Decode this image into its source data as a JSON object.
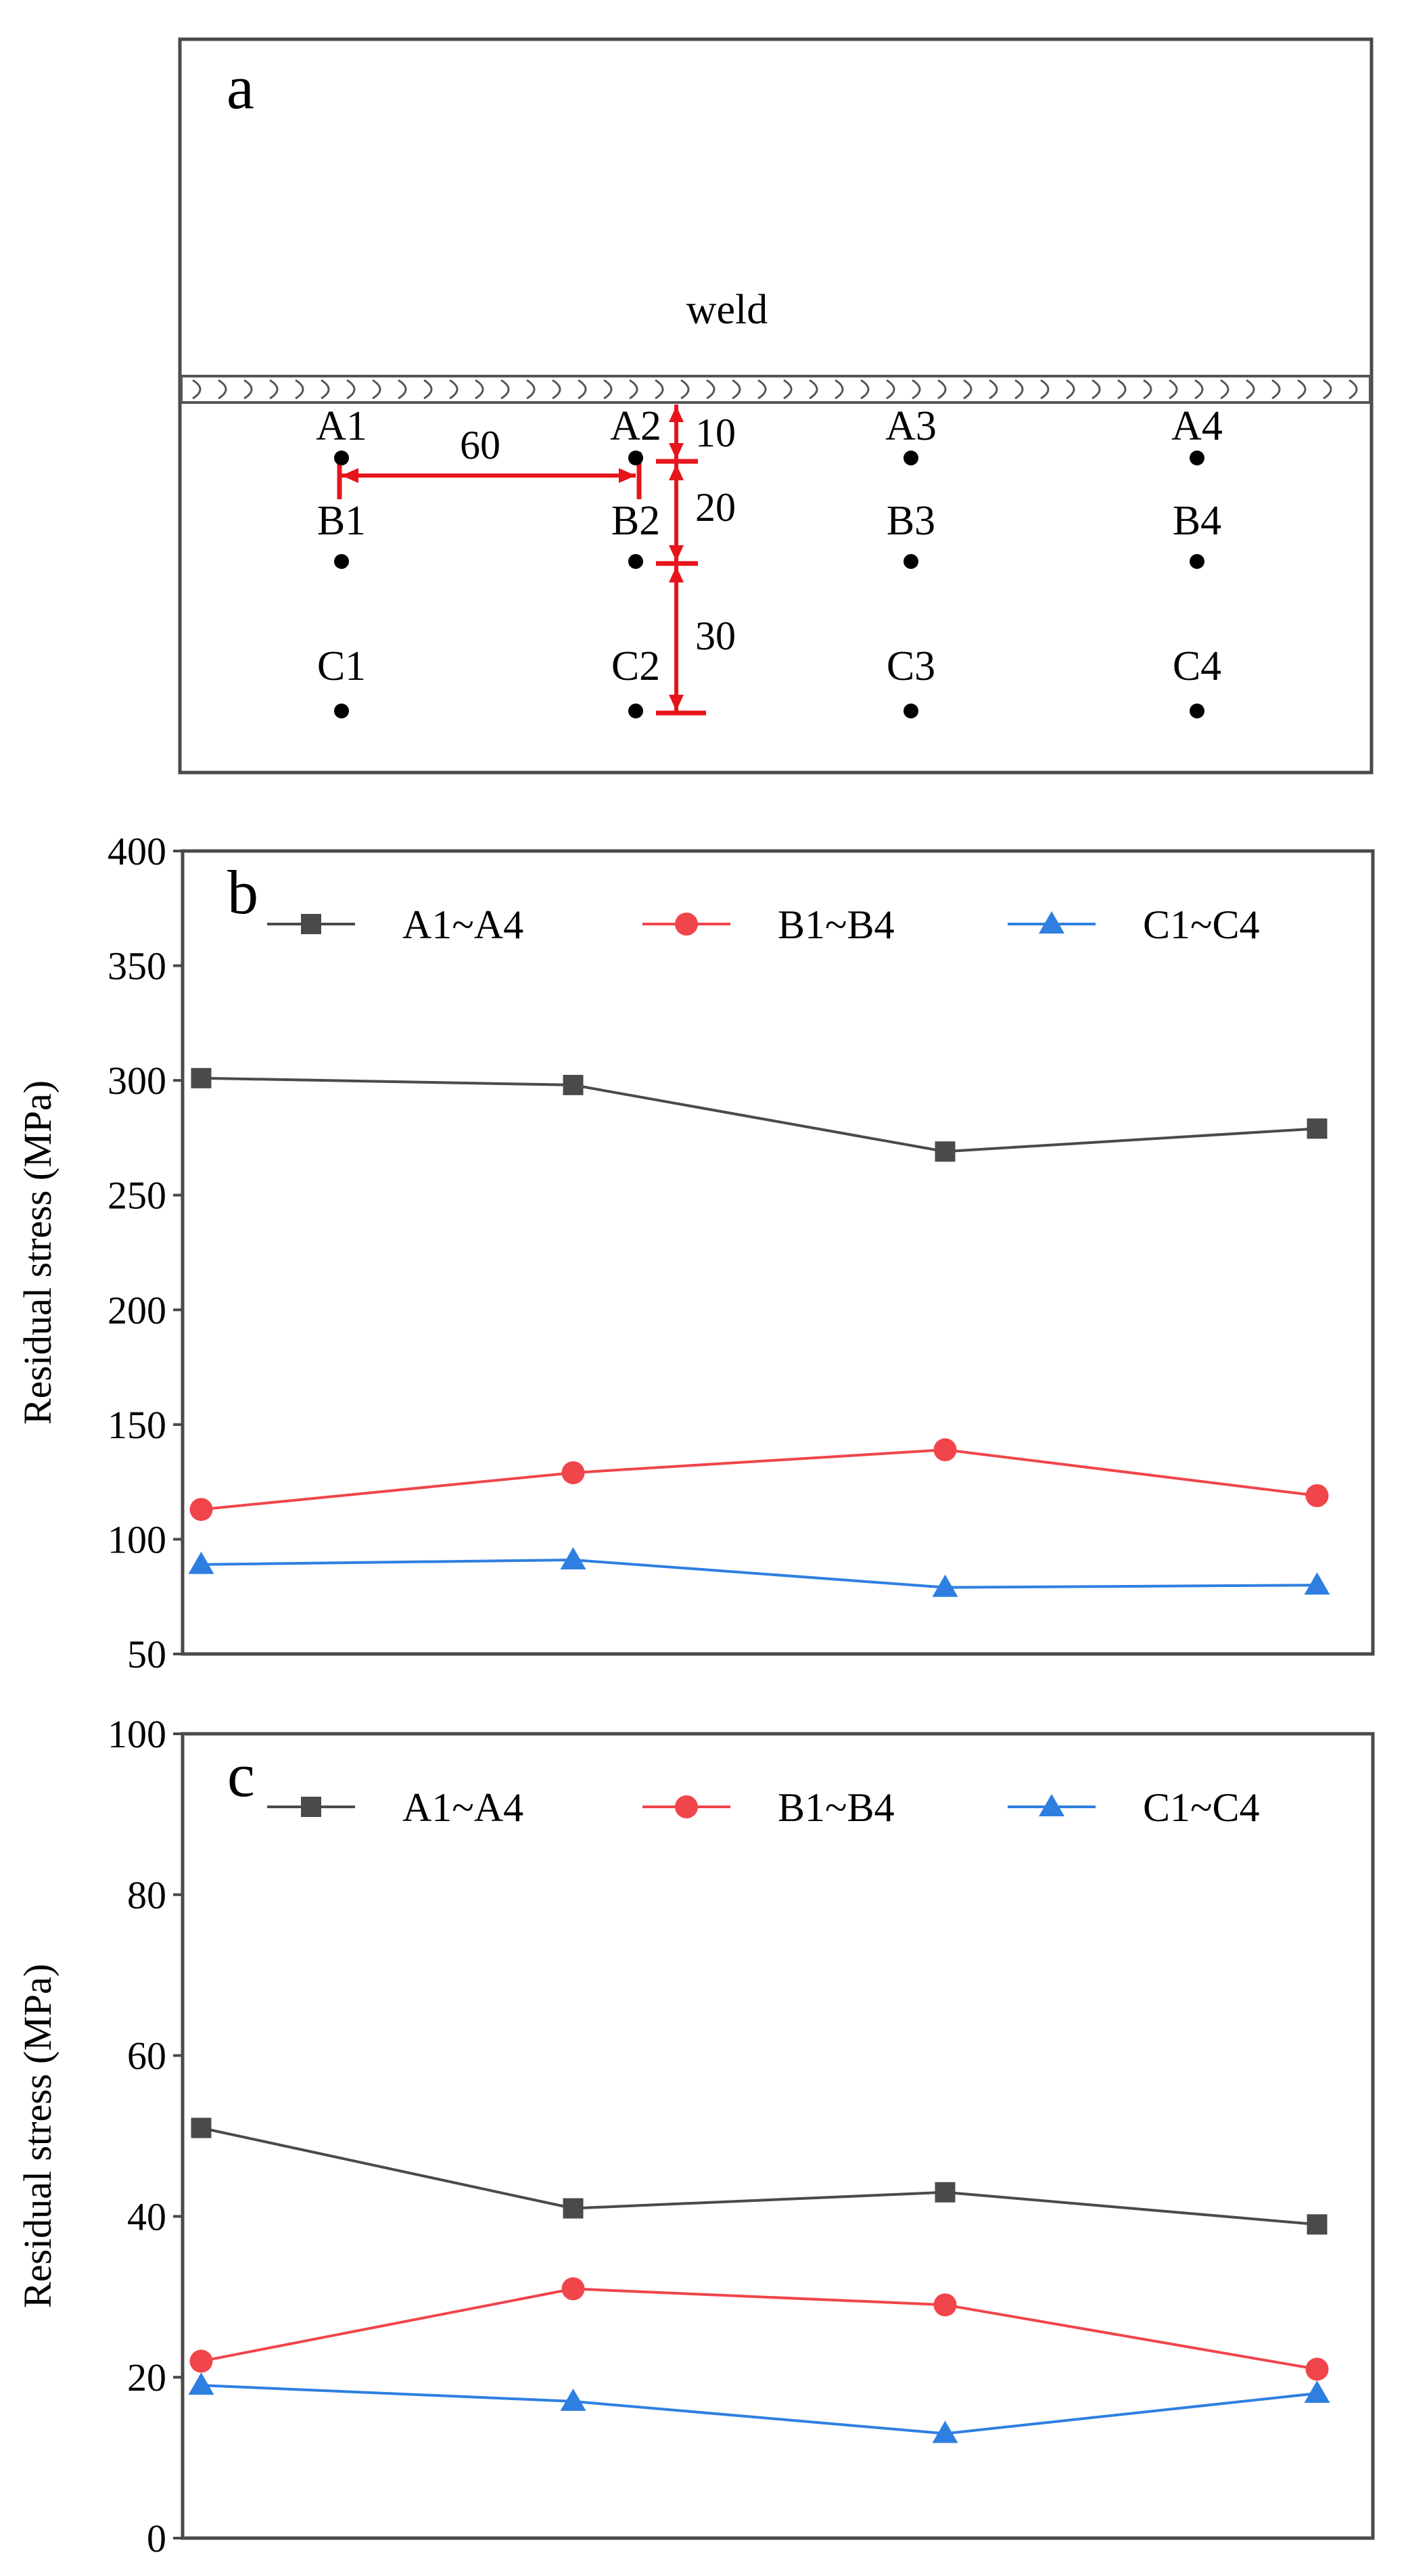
{
  "panel_a": {
    "label": "a",
    "weld_label": "weld",
    "points": {
      "row_a": [
        "A1",
        "A2",
        "A3",
        "A4"
      ],
      "row_b": [
        "B1",
        "B2",
        "B3",
        "B4"
      ],
      "row_c": [
        "C1",
        "C2",
        "C3",
        "C4"
      ]
    },
    "dimensions": {
      "horizontal": "60",
      "d1": "10",
      "d2": "20",
      "d3": "30"
    },
    "colors": {
      "dimension": "#e8141c",
      "point": "#000000",
      "weld_stroke": "#555555"
    }
  },
  "chart_data": [
    {
      "type": "line",
      "panel_label": "b",
      "title": "",
      "xlabel": "",
      "ylabel": "Residual stress (MPa)",
      "x": [
        1,
        2,
        3,
        4
      ],
      "xlim": [
        0.95,
        4.15
      ],
      "ylim": [
        50,
        400
      ],
      "yticks": [
        50,
        100,
        150,
        200,
        250,
        300,
        350,
        400
      ],
      "grid": false,
      "legend": "top, horizontal",
      "series": [
        {
          "name": "A1~A4",
          "marker": "square",
          "color": "#4a4a4a",
          "values": [
            301,
            298,
            269,
            279
          ]
        },
        {
          "name": "B1~B4",
          "marker": "circle",
          "color": "#f0454b",
          "values": [
            113,
            129,
            139,
            119
          ]
        },
        {
          "name": "C1~C4",
          "marker": "triangle",
          "color": "#2f7fe0",
          "values": [
            89,
            91,
            79,
            80
          ]
        }
      ]
    },
    {
      "type": "line",
      "panel_label": "c",
      "title": "",
      "xlabel": "",
      "ylabel": "Residual stress (MPa)",
      "x": [
        1,
        2,
        3,
        4
      ],
      "xlim": [
        0.95,
        4.15
      ],
      "ylim": [
        0,
        100
      ],
      "yticks": [
        0,
        20,
        40,
        60,
        80,
        100
      ],
      "grid": false,
      "legend": "top, horizontal",
      "series": [
        {
          "name": "A1~A4",
          "marker": "square",
          "color": "#4a4a4a",
          "values": [
            51,
            41,
            43,
            39
          ]
        },
        {
          "name": "B1~B4",
          "marker": "circle",
          "color": "#f0454b",
          "values": [
            22,
            31,
            29,
            21
          ]
        },
        {
          "name": "C1~C4",
          "marker": "triangle",
          "color": "#2f7fe0",
          "values": [
            19,
            17,
            13,
            18
          ]
        }
      ]
    }
  ]
}
